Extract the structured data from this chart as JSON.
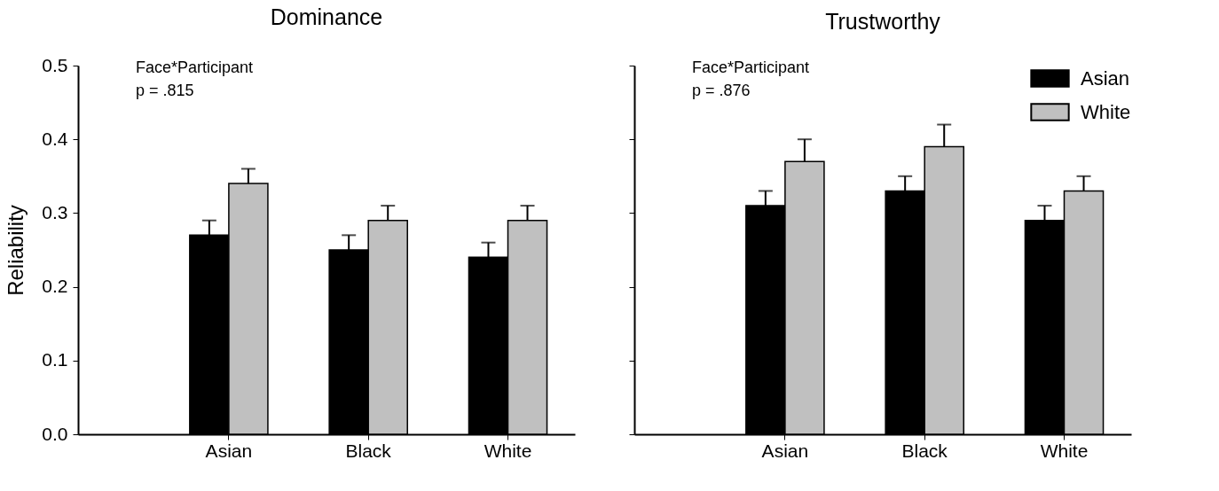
{
  "chart_data": [
    {
      "type": "bar",
      "title": "Dominance",
      "ylabel": "Reliability",
      "categories": [
        "Asian",
        "Black",
        "White"
      ],
      "series": [
        {
          "color": "#000000",
          "values": [
            0.27,
            0.25,
            0.24
          ],
          "errors": [
            [
              0.27,
              0.29
            ],
            [
              0.25,
              0.27
            ],
            [
              0.24,
              0.26
            ]
          ]
        },
        {
          "color": "#c0c0c0",
          "values": [
            0.34,
            0.29,
            0.29
          ],
          "errors": [
            [
              0.34,
              0.36
            ],
            [
              0.29,
              0.31
            ],
            [
              0.29,
              0.31
            ]
          ]
        }
      ],
      "ylim": [
        0,
        0.5
      ],
      "yticks": [
        {
          "value": 0,
          "label": "0.0"
        },
        0.1,
        0.2,
        0.3,
        0.4,
        0.5
      ],
      "grid": false,
      "legend": false,
      "annotations": [
        "Face*Participant",
        "p = .815"
      ]
    },
    {
      "type": "bar",
      "title": "Trustworthy",
      "categories": [
        "Asian",
        "Black",
        "White"
      ],
      "series": [
        {
          "name": "Asian",
          "color": "#000000",
          "values": [
            0.31,
            0.33,
            0.29
          ],
          "errors": [
            [
              0.31,
              0.33
            ],
            [
              0.33,
              0.35
            ],
            [
              0.29,
              0.31
            ]
          ]
        },
        {
          "name": "White",
          "color": "#c0c0c0",
          "values": [
            0.37,
            0.39,
            0.33
          ],
          "errors": [
            [
              0.37,
              0.4
            ],
            [
              0.39,
              0.42
            ],
            [
              0.33,
              0.35
            ]
          ]
        }
      ],
      "ylim": [
        0,
        0.5
      ],
      "yticks": [
        0,
        0.1,
        0.2,
        0.3,
        0.4,
        0.5
      ],
      "grid": false,
      "legend": "top right",
      "tick_labels": "x",
      "annotations": [
        "Face*Participant",
        "p = .876"
      ]
    }
  ]
}
